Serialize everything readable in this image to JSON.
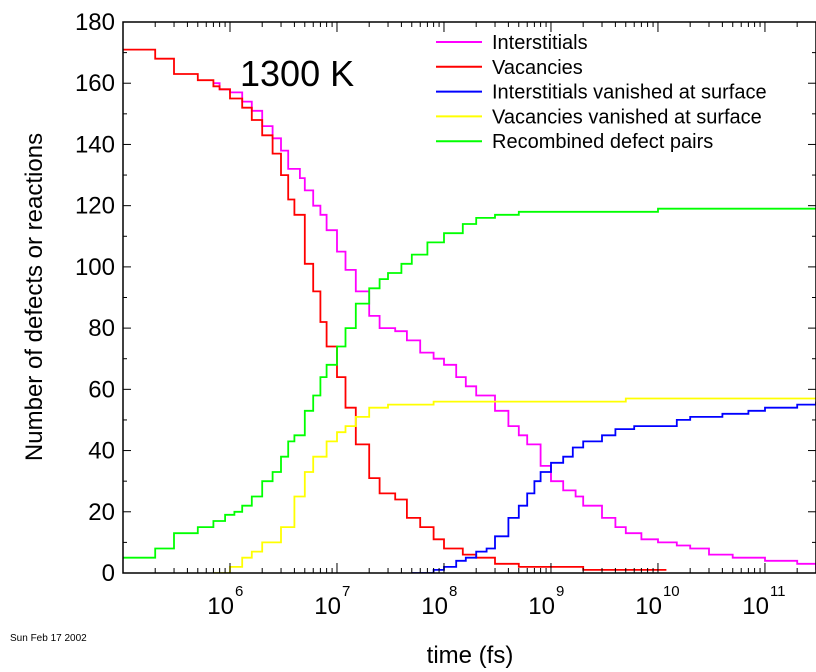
{
  "chart_data": {
    "type": "line",
    "annotation": "1300 K",
    "xlabel": "time (fs)",
    "ylabel": "Number of defects or reactions",
    "x_scale": "log",
    "xlim": [
      100000,
      300000000000
    ],
    "ylim": [
      0,
      180
    ],
    "y_ticks": [
      "0",
      "20",
      "40",
      "60",
      "80",
      "100",
      "120",
      "140",
      "160",
      "180"
    ],
    "x_ticks": [
      {
        "value": 1000000,
        "base": "10",
        "exp": "6"
      },
      {
        "value": 10000000,
        "base": "10",
        "exp": "7"
      },
      {
        "value": 100000000,
        "base": "10",
        "exp": "8"
      },
      {
        "value": 1000000000,
        "base": "10",
        "exp": "9"
      },
      {
        "value": 10000000000,
        "base": "10",
        "exp": "10"
      },
      {
        "value": 100000000000,
        "base": "10",
        "exp": "11"
      }
    ],
    "grid": false,
    "legend_position": "top-right",
    "footer": "Sun Feb 17 2002",
    "series": [
      {
        "name": "Interstitials",
        "color": "#ff00ff",
        "points": [
          [
            700000,
            160
          ],
          [
            800000,
            158
          ],
          [
            1000000,
            157
          ],
          [
            1300000,
            154
          ],
          [
            1600000,
            151
          ],
          [
            2000000,
            146
          ],
          [
            2500000,
            142
          ],
          [
            3000000,
            138
          ],
          [
            3500000,
            132
          ],
          [
            4000000,
            132
          ],
          [
            4500000,
            129
          ],
          [
            5000000,
            125
          ],
          [
            6000000,
            120
          ],
          [
            7000000,
            117
          ],
          [
            8000000,
            112
          ],
          [
            10000000,
            105
          ],
          [
            12000000,
            99
          ],
          [
            15000000,
            92
          ],
          [
            20000000,
            84
          ],
          [
            25000000,
            80
          ],
          [
            35000000,
            79
          ],
          [
            45000000,
            76
          ],
          [
            60000000,
            72
          ],
          [
            80000000,
            70
          ],
          [
            100000000,
            68
          ],
          [
            130000000,
            64
          ],
          [
            160000000,
            61
          ],
          [
            200000000,
            58
          ],
          [
            300000000,
            53
          ],
          [
            400000000,
            48
          ],
          [
            500000000,
            45
          ],
          [
            600000000,
            42
          ],
          [
            800000000,
            35
          ],
          [
            1000000000,
            30
          ],
          [
            1300000000,
            27
          ],
          [
            1700000000,
            25
          ],
          [
            2000000000,
            22
          ],
          [
            3000000000,
            18
          ],
          [
            4000000000,
            15
          ],
          [
            5000000000,
            13
          ],
          [
            7000000000,
            11
          ],
          [
            10000000000,
            10
          ],
          [
            15000000000,
            9
          ],
          [
            20000000000,
            8
          ],
          [
            30000000000,
            6
          ],
          [
            50000000000,
            5
          ],
          [
            100000000000,
            4
          ],
          [
            200000000000,
            3
          ],
          [
            300000000000,
            1
          ]
        ]
      },
      {
        "name": "Vacancies",
        "color": "#ff0000",
        "points": [
          [
            100000,
            171
          ],
          [
            200000,
            168
          ],
          [
            300000,
            163
          ],
          [
            500000,
            161
          ],
          [
            700000,
            159
          ],
          [
            800000,
            158
          ],
          [
            1000000,
            155
          ],
          [
            1300000,
            152
          ],
          [
            1600000,
            148
          ],
          [
            2000000,
            143
          ],
          [
            2500000,
            137
          ],
          [
            3000000,
            130
          ],
          [
            3500000,
            122
          ],
          [
            4000000,
            117
          ],
          [
            5000000,
            101
          ],
          [
            6000000,
            92
          ],
          [
            7000000,
            82
          ],
          [
            8000000,
            74
          ],
          [
            10000000,
            64
          ],
          [
            12000000,
            54
          ],
          [
            15000000,
            42
          ],
          [
            20000000,
            31
          ],
          [
            25000000,
            26
          ],
          [
            35000000,
            24
          ],
          [
            45000000,
            18
          ],
          [
            60000000,
            15
          ],
          [
            80000000,
            11
          ],
          [
            100000000,
            8
          ],
          [
            150000000,
            6
          ],
          [
            200000000,
            5
          ],
          [
            300000000,
            3
          ],
          [
            500000000,
            2
          ],
          [
            1000000000,
            2
          ],
          [
            2000000000,
            1
          ],
          [
            5000000000,
            1
          ],
          [
            12000000000,
            1
          ]
        ]
      },
      {
        "name": "Interstitials vanished at surface",
        "color": "#0000ff",
        "points": [
          [
            50000000,
            0
          ],
          [
            80000000,
            1
          ],
          [
            100000000,
            2
          ],
          [
            130000000,
            4
          ],
          [
            160000000,
            5
          ],
          [
            200000000,
            7
          ],
          [
            250000000,
            8
          ],
          [
            300000000,
            12
          ],
          [
            400000000,
            18
          ],
          [
            500000000,
            22
          ],
          [
            600000000,
            26
          ],
          [
            700000000,
            30
          ],
          [
            800000000,
            33
          ],
          [
            1000000000,
            36
          ],
          [
            1300000000,
            38
          ],
          [
            1600000000,
            41
          ],
          [
            2000000000,
            43
          ],
          [
            3000000000,
            45
          ],
          [
            4000000000,
            47
          ],
          [
            6000000000,
            48
          ],
          [
            10000000000,
            48
          ],
          [
            15000000000,
            50
          ],
          [
            20000000000,
            51
          ],
          [
            40000000000,
            52
          ],
          [
            70000000000,
            53
          ],
          [
            100000000000,
            54
          ],
          [
            200000000000,
            55
          ],
          [
            300000000000,
            56
          ]
        ]
      },
      {
        "name": "Vacancies vanished at surface",
        "color": "#ffff00",
        "points": [
          [
            700000,
            0
          ],
          [
            1000000,
            2
          ],
          [
            1300000,
            5
          ],
          [
            1600000,
            7
          ],
          [
            2000000,
            10
          ],
          [
            3000000,
            15
          ],
          [
            4000000,
            25
          ],
          [
            5000000,
            33
          ],
          [
            6000000,
            38
          ],
          [
            8000000,
            43
          ],
          [
            10000000,
            46
          ],
          [
            12000000,
            48
          ],
          [
            15000000,
            51
          ],
          [
            20000000,
            54
          ],
          [
            30000000,
            55
          ],
          [
            50000000,
            55
          ],
          [
            80000000,
            56
          ],
          [
            200000000,
            56
          ],
          [
            1000000000,
            56
          ],
          [
            5000000000,
            57
          ],
          [
            300000000000,
            57
          ]
        ]
      },
      {
        "name": "Recombined defect pairs",
        "color": "#00ff00",
        "points": [
          [
            100000,
            5
          ],
          [
            200000,
            8
          ],
          [
            300000,
            13
          ],
          [
            500000,
            15
          ],
          [
            700000,
            17
          ],
          [
            900000,
            19
          ],
          [
            1100000,
            20
          ],
          [
            1300000,
            22
          ],
          [
            1600000,
            25
          ],
          [
            2000000,
            30
          ],
          [
            2500000,
            33
          ],
          [
            3000000,
            38
          ],
          [
            3500000,
            43
          ],
          [
            4000000,
            45
          ],
          [
            5000000,
            53
          ],
          [
            6000000,
            58
          ],
          [
            7000000,
            64
          ],
          [
            8000000,
            68
          ],
          [
            10000000,
            74
          ],
          [
            12000000,
            80
          ],
          [
            15000000,
            88
          ],
          [
            20000000,
            93
          ],
          [
            25000000,
            96
          ],
          [
            30000000,
            98
          ],
          [
            40000000,
            101
          ],
          [
            50000000,
            104
          ],
          [
            70000000,
            108
          ],
          [
            100000000,
            111
          ],
          [
            150000000,
            114
          ],
          [
            200000000,
            116
          ],
          [
            300000000,
            117
          ],
          [
            500000000,
            118
          ],
          [
            1000000000,
            118
          ],
          [
            5000000000,
            118
          ],
          [
            10000000000,
            119
          ],
          [
            300000000000,
            119
          ]
        ]
      }
    ]
  }
}
